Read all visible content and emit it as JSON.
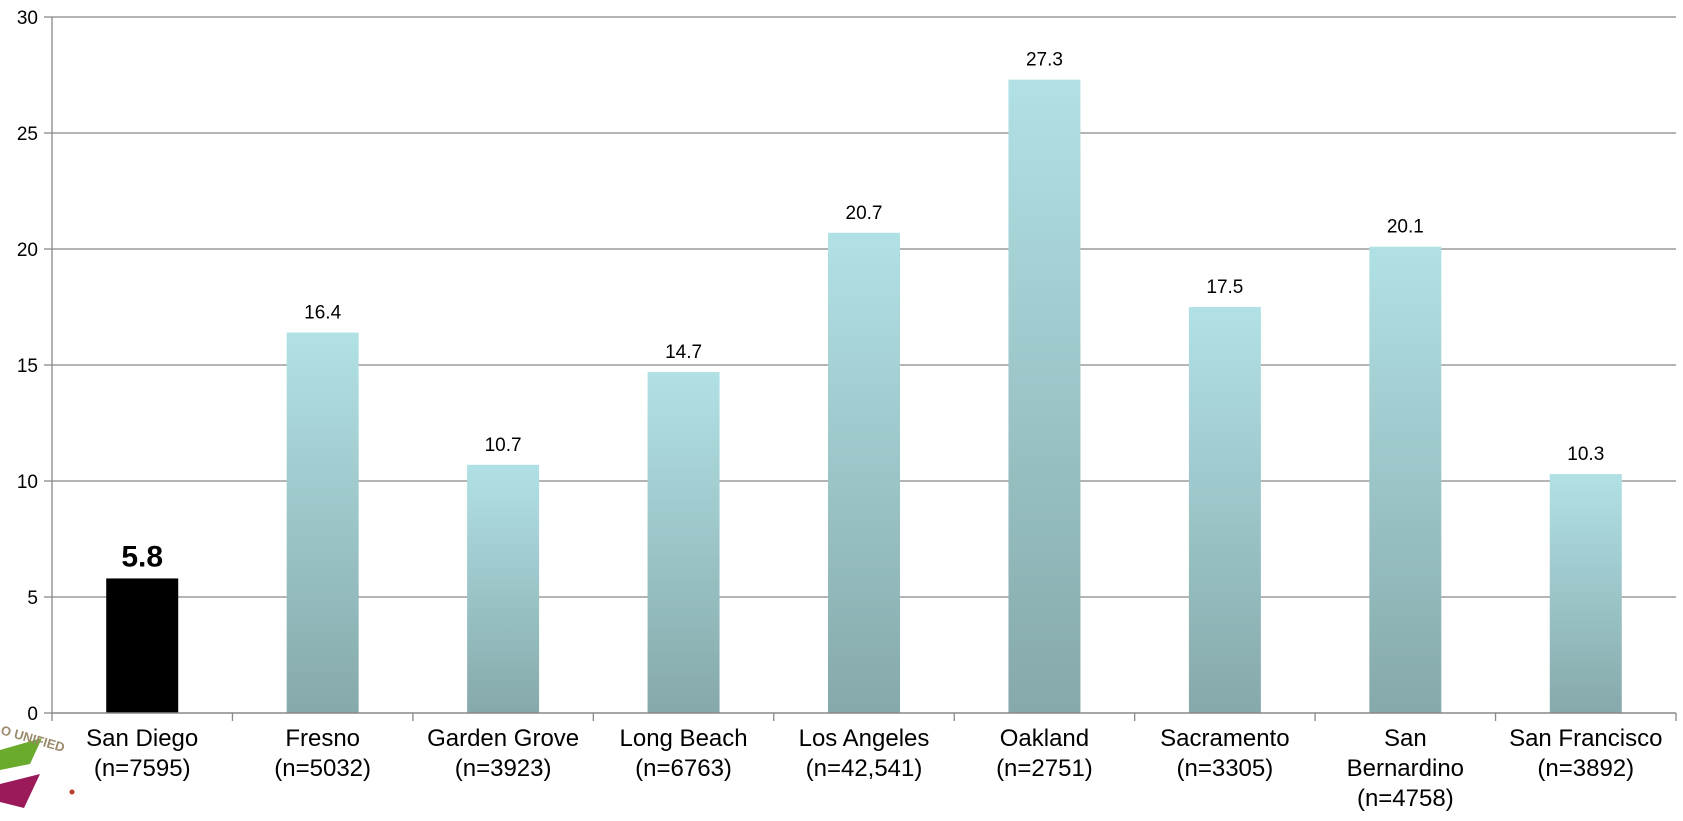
{
  "chart_data": {
    "type": "bar",
    "title": "",
    "xlabel": "",
    "ylabel": "",
    "ylim": [
      0,
      30
    ],
    "yticks": [
      0,
      5,
      10,
      15,
      20,
      25,
      30
    ],
    "grid": true,
    "legend": "none",
    "categories": [
      [
        "San Diego",
        "(n=7595)"
      ],
      [
        "Fresno",
        "(n=5032)"
      ],
      [
        "Garden Grove",
        "(n=3923)"
      ],
      [
        "Long Beach",
        "(n=6763)"
      ],
      [
        "Los Angeles",
        "(n=42,541)"
      ],
      [
        "Oakland",
        "(n=2751)"
      ],
      [
        "Sacramento",
        "(n=3305)"
      ],
      [
        "San",
        "Bernardino",
        "(n=4758)"
      ],
      [
        "San Francisco",
        "(n=3892)"
      ]
    ],
    "values": [
      5.8,
      16.4,
      10.7,
      14.7,
      20.7,
      27.3,
      17.5,
      20.1,
      10.3
    ],
    "data_labels": [
      "5.8",
      "16.4",
      "10.7",
      "14.7",
      "20.7",
      "27.3",
      "17.5",
      "20.1",
      "10.3"
    ],
    "highlight_index": 0,
    "colors": {
      "bar_top": "#b1e1e5",
      "bar_bottom": "#86a9ab",
      "highlight": "#000000",
      "grid": "#888888",
      "axis": "#888888"
    }
  },
  "logo": {
    "text": "O UNIFIED",
    "colors": [
      "#6aaa2c",
      "#9b1a5a",
      "#c0372c",
      "#9b8a6b"
    ]
  }
}
